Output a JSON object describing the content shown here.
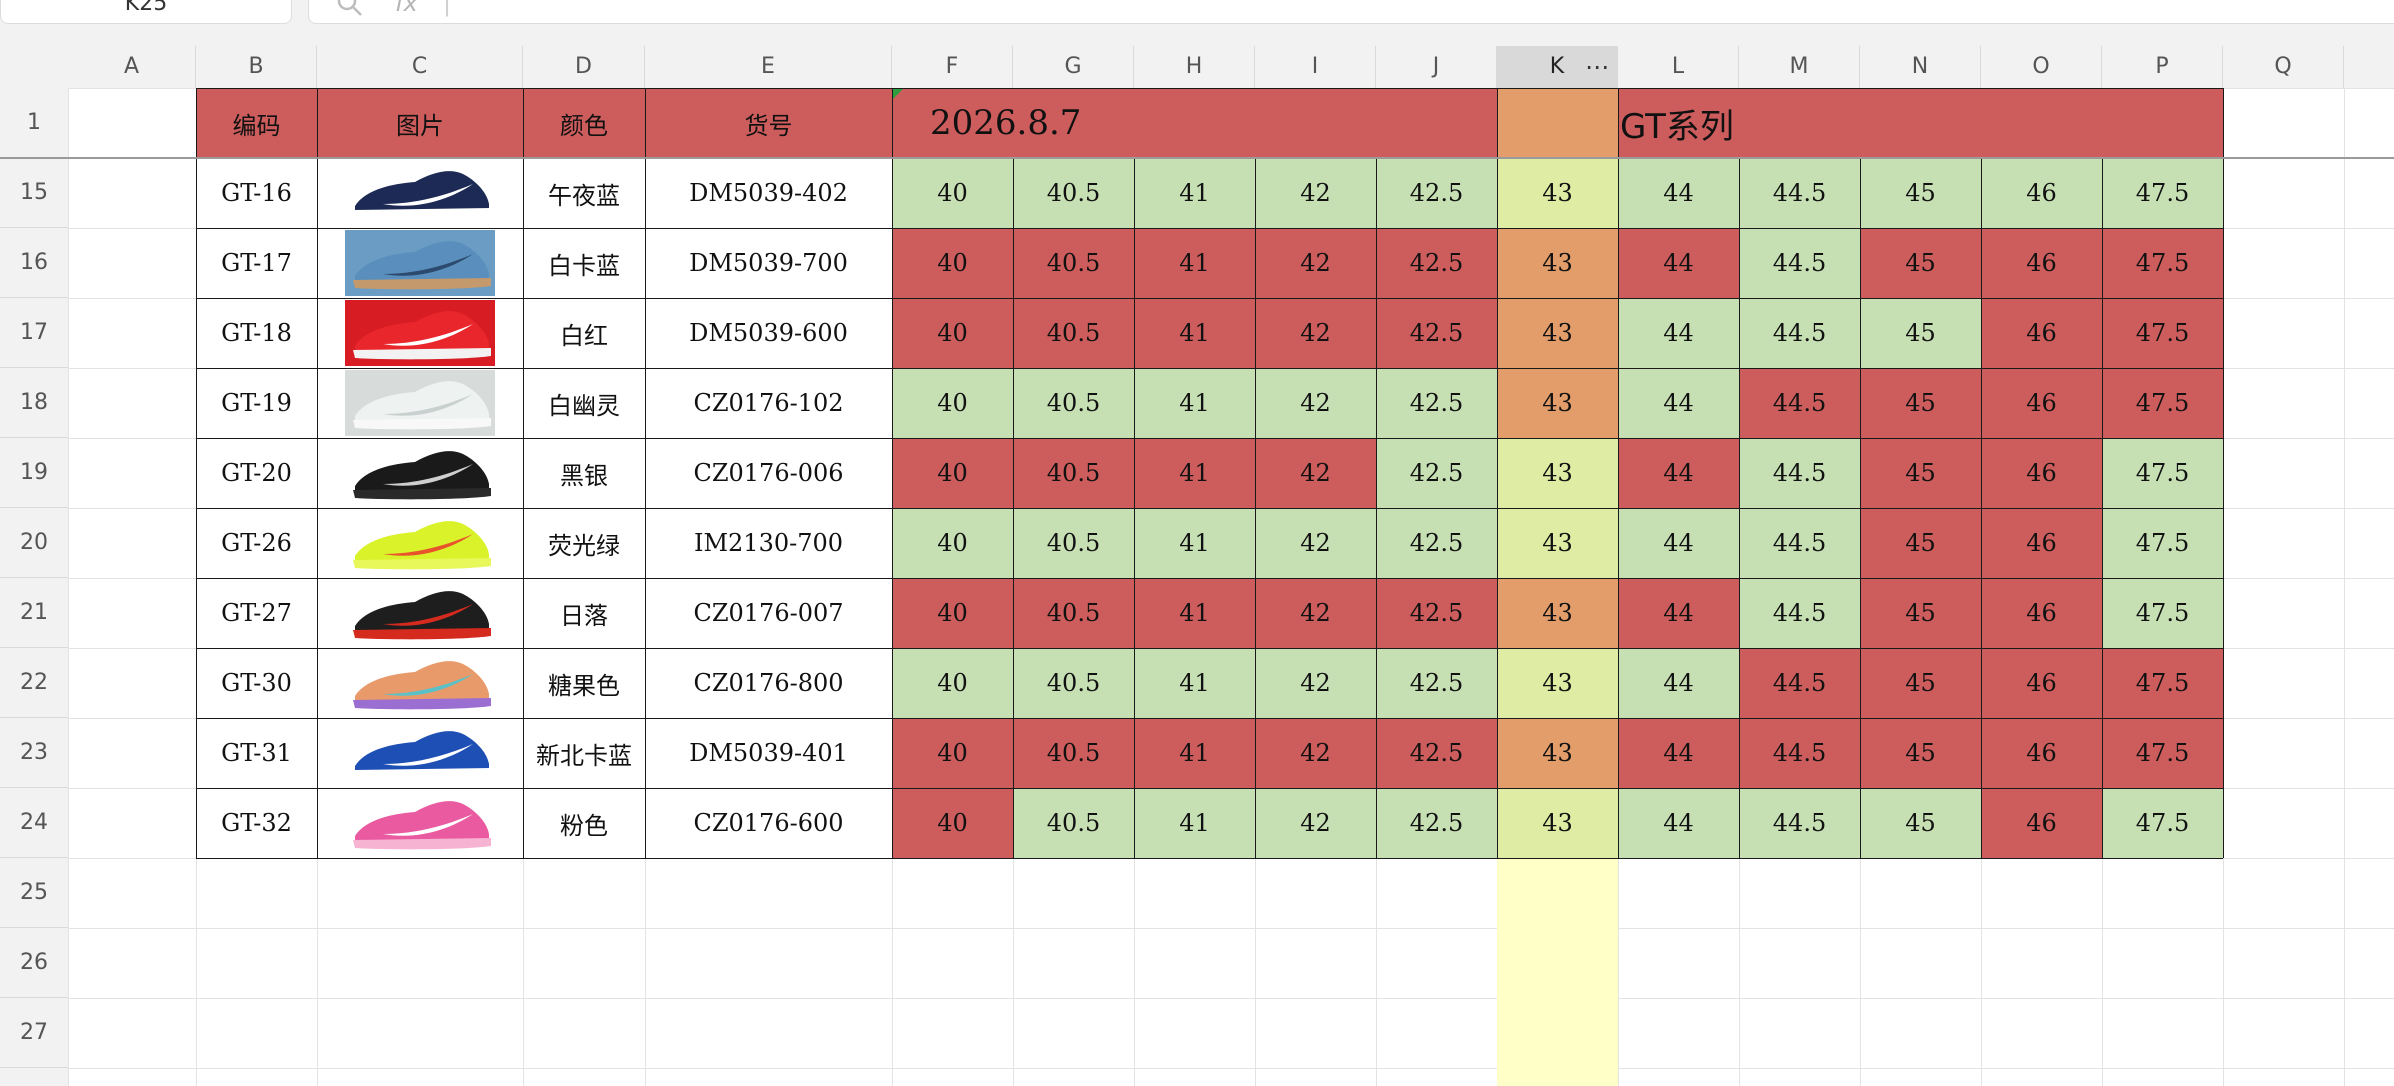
{
  "name_box": "K25",
  "formula_bar": {
    "search_icon": "search-icon",
    "fx_icon": "fx-icon",
    "value": ""
  },
  "columns": [
    "A",
    "B",
    "C",
    "D",
    "E",
    "F",
    "G",
    "H",
    "I",
    "J",
    "K",
    "L",
    "M",
    "N",
    "O",
    "P",
    "Q"
  ],
  "selected_column": "K",
  "column_menu_glyph": "⋯",
  "header_row": {
    "row_number": "1",
    "code_label": "编码",
    "image_label": "图片",
    "color_label": "颜色",
    "sku_label": "货号",
    "date": "2026.8.7",
    "series": "GT系列"
  },
  "colors": {
    "red": "#cd5c5c",
    "green": "#c6e0b4",
    "orange": "#e29d6a",
    "yellow_green": "#dfeca3",
    "pale_yellow": "#ffffc8"
  },
  "rows": [
    {
      "row": "15",
      "code": "GT-16",
      "color": "午夜蓝",
      "sku": "DM5039-402",
      "shoe": "navy-white-shoe",
      "sizes": [
        "40",
        "40.5",
        "41",
        "42",
        "42.5",
        "43",
        "44",
        "44.5",
        "45",
        "46",
        "47.5"
      ],
      "stock": [
        "g",
        "g",
        "g",
        "g",
        "g",
        "y",
        "g",
        "g",
        "g",
        "g",
        "g"
      ]
    },
    {
      "row": "16",
      "code": "GT-17",
      "color": "白卡蓝",
      "sku": "DM5039-700",
      "shoe": "light-blue-shoe",
      "sizes": [
        "40",
        "40.5",
        "41",
        "42",
        "42.5",
        "43",
        "44",
        "44.5",
        "45",
        "46",
        "47.5"
      ],
      "stock": [
        "r",
        "r",
        "r",
        "r",
        "r",
        "o",
        "r",
        "g",
        "r",
        "r",
        "r"
      ]
    },
    {
      "row": "17",
      "code": "GT-18",
      "color": "白红",
      "sku": "DM5039-600",
      "shoe": "red-shoe",
      "sizes": [
        "40",
        "40.5",
        "41",
        "42",
        "42.5",
        "43",
        "44",
        "44.5",
        "45",
        "46",
        "47.5"
      ],
      "stock": [
        "r",
        "r",
        "r",
        "r",
        "r",
        "o",
        "g",
        "g",
        "g",
        "r",
        "r"
      ]
    },
    {
      "row": "18",
      "code": "GT-19",
      "color": "白幽灵",
      "sku": "CZ0176-102",
      "shoe": "white-shoe",
      "sizes": [
        "40",
        "40.5",
        "41",
        "42",
        "42.5",
        "43",
        "44",
        "44.5",
        "45",
        "46",
        "47.5"
      ],
      "stock": [
        "g",
        "g",
        "g",
        "g",
        "g",
        "o",
        "g",
        "r",
        "r",
        "r",
        "r"
      ]
    },
    {
      "row": "19",
      "code": "GT-20",
      "color": "黑银",
      "sku": "CZ0176-006",
      "shoe": "black-shoe",
      "sizes": [
        "40",
        "40.5",
        "41",
        "42",
        "42.5",
        "43",
        "44",
        "44.5",
        "45",
        "46",
        "47.5"
      ],
      "stock": [
        "r",
        "r",
        "r",
        "r",
        "g",
        "y",
        "r",
        "g",
        "r",
        "r",
        "g"
      ]
    },
    {
      "row": "20",
      "code": "GT-26",
      "color": "荧光绿",
      "sku": "IM2130-700",
      "shoe": "volt-shoe",
      "sizes": [
        "40",
        "40.5",
        "41",
        "42",
        "42.5",
        "43",
        "44",
        "44.5",
        "45",
        "46",
        "47.5"
      ],
      "stock": [
        "g",
        "g",
        "g",
        "g",
        "g",
        "y",
        "g",
        "g",
        "r",
        "r",
        "g"
      ]
    },
    {
      "row": "21",
      "code": "GT-27",
      "color": "日落",
      "sku": "CZ0176-007",
      "shoe": "black-red-shoe",
      "sizes": [
        "40",
        "40.5",
        "41",
        "42",
        "42.5",
        "43",
        "44",
        "44.5",
        "45",
        "46",
        "47.5"
      ],
      "stock": [
        "r",
        "r",
        "r",
        "r",
        "r",
        "o",
        "r",
        "g",
        "r",
        "r",
        "g"
      ]
    },
    {
      "row": "22",
      "code": "GT-30",
      "color": "糖果色",
      "sku": "CZ0176-800",
      "shoe": "candy-shoe",
      "sizes": [
        "40",
        "40.5",
        "41",
        "42",
        "42.5",
        "43",
        "44",
        "44.5",
        "45",
        "46",
        "47.5"
      ],
      "stock": [
        "g",
        "g",
        "g",
        "g",
        "g",
        "y",
        "g",
        "r",
        "r",
        "r",
        "r"
      ]
    },
    {
      "row": "23",
      "code": "GT-31",
      "color": "新北卡蓝",
      "sku": "DM5039-401",
      "shoe": "royal-blue-shoe",
      "sizes": [
        "40",
        "40.5",
        "41",
        "42",
        "42.5",
        "43",
        "44",
        "44.5",
        "45",
        "46",
        "47.5"
      ],
      "stock": [
        "r",
        "r",
        "r",
        "r",
        "r",
        "o",
        "r",
        "r",
        "r",
        "r",
        "r"
      ]
    },
    {
      "row": "24",
      "code": "GT-32",
      "color": "粉色",
      "sku": "CZ0176-600",
      "shoe": "pink-shoe",
      "sizes": [
        "40",
        "40.5",
        "41",
        "42",
        "42.5",
        "43",
        "44",
        "44.5",
        "45",
        "46",
        "47.5"
      ],
      "stock": [
        "r",
        "g",
        "g",
        "g",
        "g",
        "y",
        "g",
        "g",
        "g",
        "r",
        "g"
      ]
    }
  ],
  "empty_rows": [
    "25",
    "26",
    "27"
  ]
}
